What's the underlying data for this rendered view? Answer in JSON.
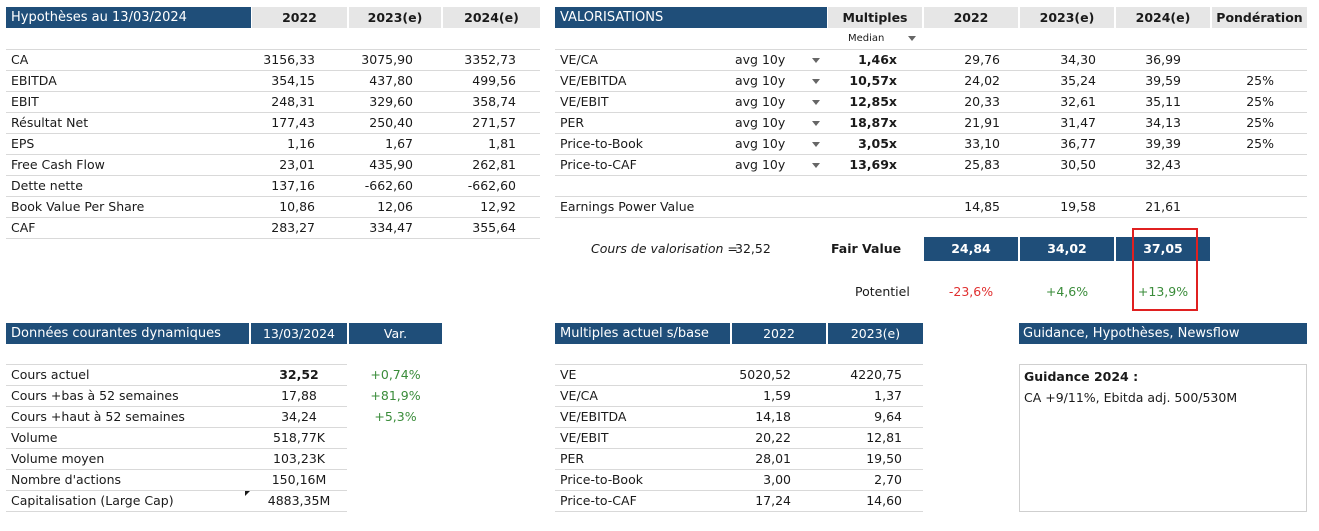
{
  "hyp": {
    "title": "Hypothèses au 13/03/2024",
    "cols": [
      "2022",
      "2023(e)",
      "2024(e)"
    ],
    "rows": [
      {
        "label": "CA",
        "v": [
          "3156,33",
          "3075,90",
          "3352,73"
        ]
      },
      {
        "label": "EBITDA",
        "v": [
          "354,15",
          "437,80",
          "499,56"
        ]
      },
      {
        "label": "EBIT",
        "v": [
          "248,31",
          "329,60",
          "358,74"
        ]
      },
      {
        "label": "Résultat Net",
        "v": [
          "177,43",
          "250,40",
          "271,57"
        ]
      },
      {
        "label": "EPS",
        "v": [
          "1,16",
          "1,67",
          "1,81"
        ]
      },
      {
        "label": "Free Cash Flow",
        "v": [
          "23,01",
          "435,90",
          "262,81"
        ]
      },
      {
        "label": "Dette nette",
        "v": [
          "137,16",
          "-662,60",
          "-662,60"
        ]
      },
      {
        "label": "Book Value Per Share",
        "v": [
          "10,86",
          "12,06",
          "12,92"
        ]
      },
      {
        "label": "CAF",
        "v": [
          "283,27",
          "334,47",
          "355,64"
        ]
      }
    ]
  },
  "val": {
    "title": "VALORISATIONS",
    "multiples_col": "Multiples",
    "median_label": "Median",
    "cols": [
      "2022",
      "2023(e)",
      "2024(e)"
    ],
    "pond_col": "Pondération",
    "rows": [
      {
        "label": "VE/CA",
        "avg": "avg 10y",
        "mult": "1,46x",
        "v": [
          "29,76",
          "34,30",
          "36,99"
        ],
        "pond": ""
      },
      {
        "label": "VE/EBITDA",
        "avg": "avg 10y",
        "mult": "10,57x",
        "v": [
          "24,02",
          "35,24",
          "39,59"
        ],
        "pond": "25%"
      },
      {
        "label": "VE/EBIT",
        "avg": "avg 10y",
        "mult": "12,85x",
        "v": [
          "20,33",
          "32,61",
          "35,11"
        ],
        "pond": "25%"
      },
      {
        "label": "PER",
        "avg": "avg 10y",
        "mult": "18,87x",
        "v": [
          "21,91",
          "31,47",
          "34,13"
        ],
        "pond": "25%"
      },
      {
        "label": "Price-to-Book",
        "avg": "avg 10y",
        "mult": "3,05x",
        "v": [
          "33,10",
          "36,77",
          "39,39"
        ],
        "pond": "25%"
      },
      {
        "label": "Price-to-CAF",
        "avg": "avg 10y",
        "mult": "13,69x",
        "v": [
          "25,83",
          "30,50",
          "32,43"
        ],
        "pond": ""
      }
    ],
    "epv": {
      "label": "Earnings Power Value",
      "v": [
        "14,85",
        "19,58",
        "21,61"
      ]
    },
    "cours_label": "Cours de valorisation =",
    "cours_value": "32,52",
    "fair_value_label": "Fair Value",
    "fair_values": [
      "24,84",
      "34,02",
      "37,05"
    ],
    "potentiel_label": "Potentiel",
    "potentiels": [
      "-23,6%",
      "+4,6%",
      "+13,9%"
    ],
    "colors": {
      "negative": "#e03030",
      "positive": "#3a8c3a",
      "highlight_box": "#e02020"
    }
  },
  "dyn": {
    "title": "Données courantes dynamiques",
    "date": "13/03/2024",
    "var_col": "Var.",
    "rows": [
      {
        "label": "Cours actuel",
        "value": "32,52",
        "var": "+0,74%"
      },
      {
        "label": "Cours +bas à 52 semaines",
        "value": "17,88",
        "var": "+81,9%"
      },
      {
        "label": "Cours +haut à 52 semaines",
        "value": "34,24",
        "var": "+5,3%"
      },
      {
        "label": "Volume",
        "value": "518,77K",
        "var": ""
      },
      {
        "label": "Volume moyen",
        "value": "103,23K",
        "var": ""
      },
      {
        "label": "Nombre d'actions",
        "value": "150,16M",
        "var": ""
      },
      {
        "label": "Capitalisation (Large Cap)",
        "value": "4883,35M",
        "var": ""
      }
    ]
  },
  "mult": {
    "title": "Multiples actuel s/base",
    "cols": [
      "2022",
      "2023(e)"
    ],
    "rows": [
      {
        "label": "VE",
        "v": [
          "5020,52",
          "4220,75"
        ]
      },
      {
        "label": "VE/CA",
        "v": [
          "1,59",
          "1,37"
        ]
      },
      {
        "label": "VE/EBITDA",
        "v": [
          "14,18",
          "9,64"
        ]
      },
      {
        "label": "VE/EBIT",
        "v": [
          "20,22",
          "12,81"
        ]
      },
      {
        "label": "PER",
        "v": [
          "28,01",
          "19,50"
        ]
      },
      {
        "label": "Price-to-Book",
        "v": [
          "3,00",
          "2,70"
        ]
      },
      {
        "label": "Price-to-CAF",
        "v": [
          "17,24",
          "14,60"
        ]
      }
    ]
  },
  "guidance": {
    "title": "Guidance, Hypothèses, Newsflow",
    "heading": "Guidance 2024 :",
    "text": "CA +9/11%, Ebitda adj. 500/530M"
  },
  "brand": {
    "header_bg": "#1f4e79",
    "subheader_bg": "#e6e6e6"
  }
}
